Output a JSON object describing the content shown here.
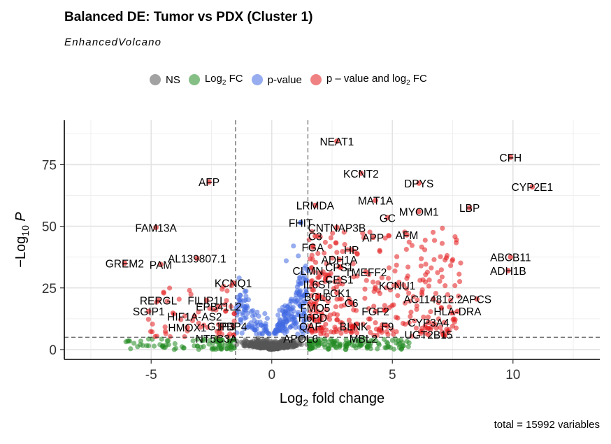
{
  "title": "Balanced DE: Tumor vs PDX (Cluster 1)",
  "subtitle": "EnhancedVolcano",
  "caption": "total = 15992 variables",
  "legend": [
    {
      "key": "NS",
      "label": "NS",
      "sub": "",
      "suffix": "",
      "color": "#555555"
    },
    {
      "key": "FC",
      "label": "Log",
      "sub": "2",
      "suffix": " FC",
      "color": "#228B22"
    },
    {
      "key": "P",
      "label": "p-value",
      "sub": "",
      "suffix": "",
      "color": "#4169E1"
    },
    {
      "key": "P_FC",
      "label": "p – value and log",
      "sub": "2",
      "suffix": " FC",
      "color": "#E41A1C"
    }
  ],
  "chart_data": {
    "type": "scatter",
    "title": "Balanced DE: Tumor vs PDX (Cluster 1)",
    "subtitle": "EnhancedVolcano",
    "xlabel": "Log2 fold change",
    "ylabel": "-Log10 P",
    "xlim": [
      -8.6,
      13.6
    ],
    "ylim": [
      -4,
      93
    ],
    "xticks": [
      -5,
      0,
      5,
      10
    ],
    "yticks": [
      0,
      25,
      50,
      75
    ],
    "grid": true,
    "legend_position": "top",
    "fc_cutoff": 1.5,
    "p_cutoff_log10": 5,
    "total_variables": 15992,
    "labeled_genes": [
      {
        "gene": "NEAT1",
        "x": 2.7,
        "y": 84.5
      },
      {
        "gene": "CFH",
        "x": 9.9,
        "y": 78
      },
      {
        "gene": "KCNT2",
        "x": 3.7,
        "y": 71.5
      },
      {
        "gene": "AFP",
        "x": -2.6,
        "y": 68
      },
      {
        "gene": "DPYS",
        "x": 6.1,
        "y": 67.5
      },
      {
        "gene": "CYP2E1",
        "x": 10.8,
        "y": 66
      },
      {
        "gene": "MAT1A",
        "x": 4.3,
        "y": 60.5
      },
      {
        "gene": "LRMDA",
        "x": 1.8,
        "y": 58.5
      },
      {
        "gene": "LBP",
        "x": 8.2,
        "y": 57.5
      },
      {
        "gene": "MYOM1",
        "x": 6.1,
        "y": 56
      },
      {
        "gene": "GC",
        "x": 4.8,
        "y": 53.5
      },
      {
        "gene": "FHIT",
        "x": 1.2,
        "y": 51.5
      },
      {
        "gene": "CNTNAP3B",
        "x": 2.7,
        "y": 49.5
      },
      {
        "gene": "FAM13A",
        "x": -4.8,
        "y": 49.5
      },
      {
        "gene": "C3",
        "x": 1.8,
        "y": 46
      },
      {
        "gene": "APP",
        "x": 4.2,
        "y": 45.5
      },
      {
        "gene": "AFM",
        "x": 5.6,
        "y": 46.5
      },
      {
        "gene": "FGA",
        "x": 1.7,
        "y": 41.5
      },
      {
        "gene": "HP",
        "x": 3.3,
        "y": 40.5
      },
      {
        "gene": "ABCB11",
        "x": 9.9,
        "y": 37.5
      },
      {
        "gene": "AL139807.1",
        "x": -3.1,
        "y": 37
      },
      {
        "gene": "ADH1A",
        "x": 2.8,
        "y": 36.5
      },
      {
        "gene": "GREM2",
        "x": -6.1,
        "y": 35
      },
      {
        "gene": "PAM",
        "x": -4.6,
        "y": 34.5
      },
      {
        "gene": "CPS1",
        "x": 2.8,
        "y": 33.5
      },
      {
        "gene": "ADH1B",
        "x": 9.8,
        "y": 32
      },
      {
        "gene": "CLMN",
        "x": 1.5,
        "y": 32
      },
      {
        "gene": "TMEFF2",
        "x": 3.9,
        "y": 31.5
      },
      {
        "gene": "KCNQ1",
        "x": -1.6,
        "y": 27
      },
      {
        "gene": "IL6ST",
        "x": 1.9,
        "y": 26.5
      },
      {
        "gene": "CES1",
        "x": 2.8,
        "y": 28.5
      },
      {
        "gene": "KCNU1",
        "x": 5.2,
        "y": 26
      },
      {
        "gene": "BCL6",
        "x": 1.9,
        "y": 21.5
      },
      {
        "gene": "PCK1",
        "x": 2.7,
        "y": 23
      },
      {
        "gene": "AC114812.2",
        "x": 6.7,
        "y": 20.5
      },
      {
        "gene": "APCS",
        "x": 8.5,
        "y": 20.5
      },
      {
        "gene": "RERGL",
        "x": -4.7,
        "y": 20
      },
      {
        "gene": "FILIP1L",
        "x": -2.7,
        "y": 20
      },
      {
        "gene": "C6",
        "x": 3.3,
        "y": 19
      },
      {
        "gene": "EPB41L2",
        "x": -2.2,
        "y": 17.5
      },
      {
        "gene": "FMO5",
        "x": 1.8,
        "y": 17
      },
      {
        "gene": "FGF2",
        "x": 4.3,
        "y": 15.5
      },
      {
        "gene": "HLA-DRA",
        "x": 7.7,
        "y": 15.5
      },
      {
        "gene": "SGIP1",
        "x": -5.1,
        "y": 15.5
      },
      {
        "gene": "HIF1A-AS2",
        "x": -3.2,
        "y": 13.5
      },
      {
        "gene": "H6PD",
        "x": 1.7,
        "y": 13
      },
      {
        "gene": "BLNK",
        "x": 3.4,
        "y": 9.5
      },
      {
        "gene": "CYP3A4",
        "x": 6.5,
        "y": 11
      },
      {
        "gene": "F9",
        "x": 4.8,
        "y": 9.5
      },
      {
        "gene": "G1P3",
        "x": -2.1,
        "y": 9.5
      },
      {
        "gene": "PBP4",
        "x": -1.6,
        "y": 9.5
      },
      {
        "gene": "QAF",
        "x": 1.6,
        "y": 9.5
      },
      {
        "gene": "HMOX1",
        "x": -3.5,
        "y": 9
      },
      {
        "gene": "UGT2B15",
        "x": 6.5,
        "y": 6
      },
      {
        "gene": "NT5C3A",
        "x": -2.3,
        "y": 4.5
      },
      {
        "gene": "APOL6",
        "x": 1.2,
        "y": 4.5
      },
      {
        "gene": "MBL2",
        "x": 3.8,
        "y": 4.5
      }
    ],
    "tick_labels_x": [
      "-5",
      "0",
      "5",
      "10"
    ],
    "tick_labels_y": [
      "0",
      "25",
      "50",
      "75"
    ]
  }
}
